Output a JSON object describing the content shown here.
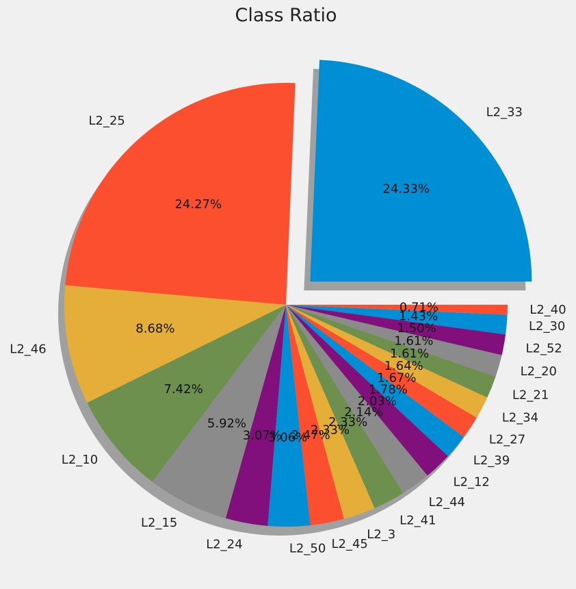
{
  "chart_data": {
    "type": "pie",
    "title": "Class Ratio",
    "categories": [
      "L2_33",
      "L2_25",
      "L2_46",
      "L2_10",
      "L2_15",
      "L2_24",
      "L2_50",
      "L2_45",
      "L2_3",
      "L2_41",
      "L2_44",
      "L2_12",
      "L2_39",
      "L2_27",
      "L2_34",
      "L2_21",
      "L2_20",
      "L2_52",
      "L2_30",
      "L2_40"
    ],
    "values": [
      24.33,
      24.27,
      8.68,
      7.42,
      5.92,
      3.07,
      3.06,
      2.47,
      2.33,
      2.33,
      2.14,
      2.03,
      1.78,
      1.67,
      1.64,
      1.61,
      1.61,
      1.5,
      1.43,
      0.71
    ],
    "value_labels": [
      "24.33%",
      "24.27%",
      "8.68%",
      "7.42%",
      "5.92%",
      "3.07%",
      "3.06%",
      "2.47%",
      "2.33%",
      "2.33%",
      "2.14%",
      "2.03%",
      "1.78%",
      "1.67%",
      "1.64%",
      "1.61%",
      "1.61%",
      "1.50%",
      "1.43%",
      "0.71%"
    ],
    "colors": [
      "#008fd5",
      "#fc4f30",
      "#e5ae38",
      "#6d904f",
      "#8b8b8b",
      "#810f7c"
    ],
    "exploded": [
      "L2_33"
    ],
    "shadow": true,
    "start_angle": 0,
    "direction": "counterclockwise",
    "legend": "none"
  }
}
